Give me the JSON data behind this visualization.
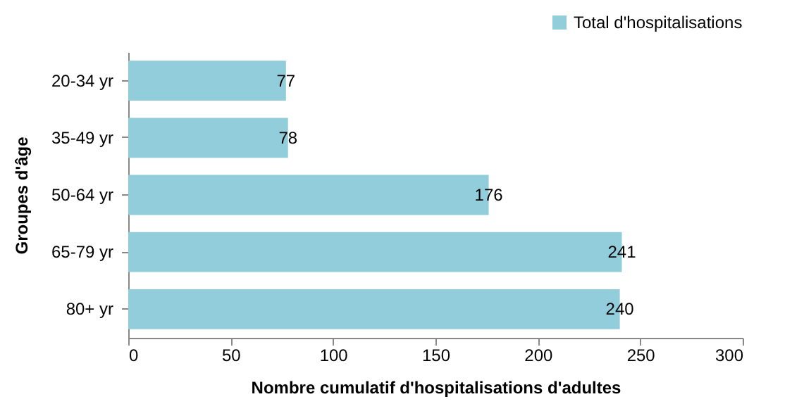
{
  "chart_data": {
    "type": "bar",
    "orientation": "horizontal",
    "categories": [
      "20-34 yr",
      "35-49 yr",
      "50-64 yr",
      "65-79 yr",
      "80+ yr"
    ],
    "series": [
      {
        "name": "Total d'hospitalisations",
        "color": "#92cddc",
        "values": [
          77,
          78,
          176,
          241,
          240
        ]
      }
    ],
    "xlabel": "Nombre cumulatif d'hospitalisations  d'adultes",
    "ylabel": "Groupes d'âge",
    "xlim": [
      0,
      300
    ],
    "xticks": [
      0,
      50,
      100,
      150,
      200,
      250,
      300
    ],
    "data_labels": true,
    "legend": "top right",
    "grid": false
  }
}
